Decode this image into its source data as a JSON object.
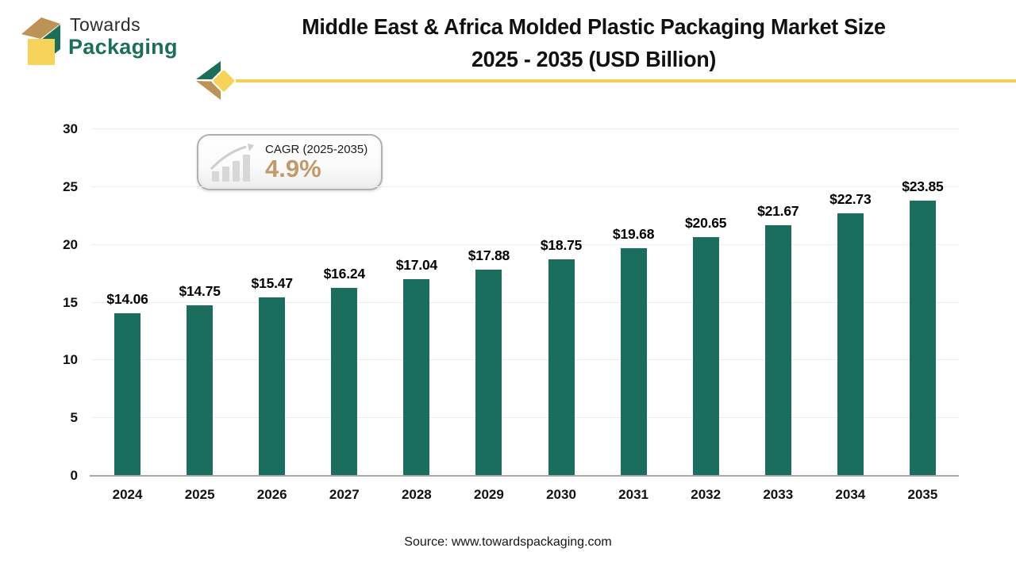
{
  "logo": {
    "brand_line1": "Towards",
    "brand_line2": "Packaging"
  },
  "title": {
    "line1": "Middle East & Africa Molded Plastic Packaging Market Size",
    "line2": "2025 - 2035 (USD Billion)"
  },
  "cagr_badge": {
    "label": "CAGR (2025-2035)",
    "value": "4.9%"
  },
  "source": "Source: www.towardspackaging.com",
  "colors": {
    "bar": "#1b6e5d",
    "accent_yellow": "#f2cf55",
    "logo_green": "#1d6e59",
    "logo_tan": "#bd9257",
    "cagr_value": "#c2996b",
    "gridline": "#ececec",
    "axis": "#a8a8a8"
  },
  "chart_data": {
    "type": "bar",
    "title": "Middle East & Africa Molded Plastic Packaging Market Size 2025 - 2035 (USD Billion)",
    "categories": [
      "2024",
      "2025",
      "2026",
      "2027",
      "2028",
      "2029",
      "2030",
      "2031",
      "2032",
      "2033",
      "2034",
      "2035"
    ],
    "values": [
      14.06,
      14.75,
      15.47,
      16.24,
      17.04,
      17.88,
      18.75,
      19.68,
      20.65,
      21.67,
      22.73,
      23.85
    ],
    "value_labels": [
      "$14.06",
      "$14.75",
      "$15.47",
      "$16.24",
      "$17.04",
      "$17.88",
      "$18.75",
      "$19.68",
      "$20.65",
      "$21.67",
      "$22.73",
      "$23.85"
    ],
    "xlabel": "",
    "ylabel": "",
    "ylim": [
      0,
      30
    ],
    "yticks": [
      0,
      5,
      10,
      15,
      20,
      25,
      30
    ],
    "grid": "horizontal",
    "legend": "none",
    "unit": "USD Billion"
  }
}
